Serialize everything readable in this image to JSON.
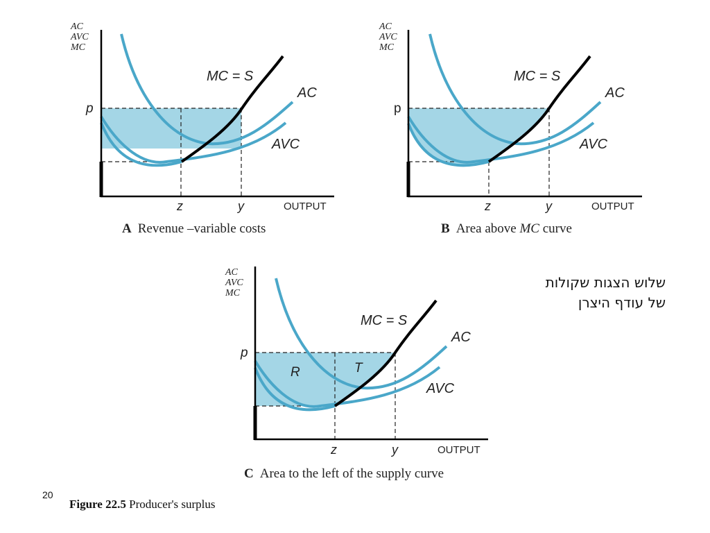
{
  "slide_number": "20",
  "hebrew_note": [
    "שלוש הצגות שקולות",
    "של עודף היצרן"
  ],
  "figure_caption": {
    "label": "Figure 22.5",
    "title": "Producer's surplus"
  },
  "colors": {
    "curve": "#4aa7c9",
    "fill": "#a4d6e6",
    "supply": "#000000",
    "guide": "#222222"
  },
  "common_labels": {
    "y_axis": [
      "AC",
      "AVC",
      "MC"
    ],
    "x_axis": "OUTPUT",
    "price": "p",
    "z": "z",
    "y": "y",
    "mc_s": "MC = S",
    "ac": "AC",
    "avc": "AVC"
  },
  "panels": [
    {
      "id": "A",
      "letter": "A",
      "caption": "Revenue –variable costs",
      "shading": "rectangle",
      "regions": []
    },
    {
      "id": "B",
      "letter": "B",
      "caption_pre": "Area above ",
      "caption_em": "MC",
      "caption_post": " curve",
      "shading": "above-mc",
      "regions": []
    },
    {
      "id": "C",
      "letter": "C",
      "caption": "Area to the left of the supply curve",
      "shading": "left-of-supply",
      "regions": [
        "R",
        "T"
      ]
    }
  ]
}
